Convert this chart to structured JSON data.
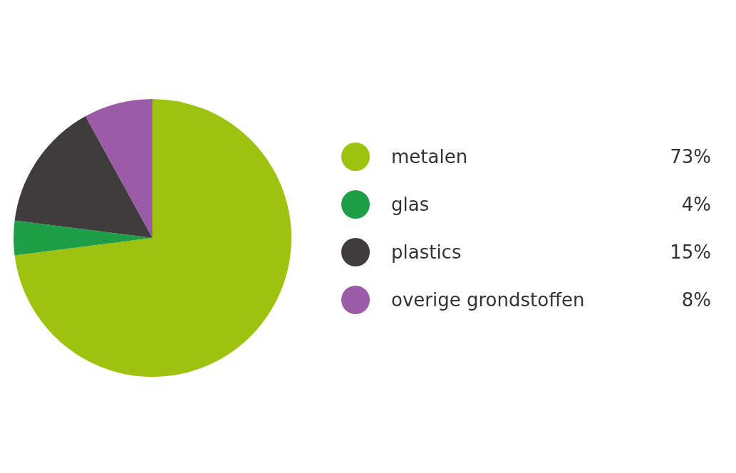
{
  "chart_data": {
    "type": "pie",
    "categories": [
      "metalen",
      "glas",
      "plastics",
      "overige grondstoffen"
    ],
    "values": [
      73,
      4,
      15,
      8
    ],
    "value_labels": [
      "73%",
      "4%",
      "15%",
      "8%"
    ],
    "colors": [
      "#9dc20f",
      "#1e9e47",
      "#403b3d",
      "#9b5ba6"
    ],
    "legend": "right"
  }
}
